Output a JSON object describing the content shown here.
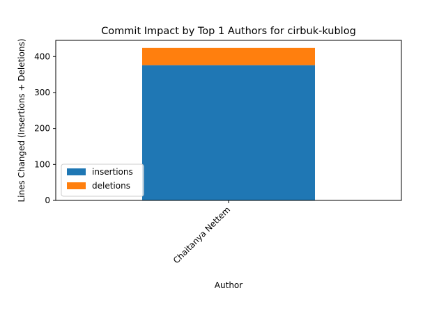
{
  "chart_data": {
    "type": "bar",
    "stacked": true,
    "title": "Commit Impact by Top 1 Authors for cirbuk-kublog",
    "xlabel": "Author",
    "ylabel": "Lines Changed (Insertions + Deletions)",
    "categories": [
      "Chaitanya Nettem"
    ],
    "series": [
      {
        "name": "insertions",
        "values": [
          376
        ],
        "color": "#1f77b4"
      },
      {
        "name": "deletions",
        "values": [
          48
        ],
        "color": "#ff7f0e"
      }
    ],
    "ylim": [
      0,
      445
    ],
    "yticks": [
      0,
      100,
      200,
      300,
      400
    ],
    "grid": false,
    "legend_position": "lower-left"
  }
}
